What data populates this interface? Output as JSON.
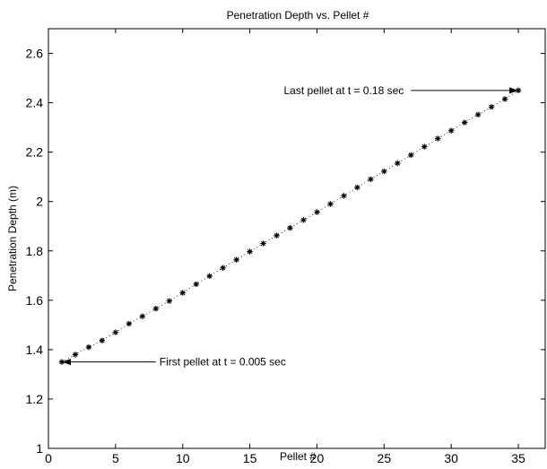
{
  "chart_data": {
    "type": "scatter",
    "title": "Penetration Depth vs. Pellet #",
    "xlabel": "Pellet #",
    "ylabel": "Penetration Depth (m)",
    "xlim": [
      0,
      37
    ],
    "ylim": [
      1,
      2.7
    ],
    "xticks": [
      0,
      5,
      10,
      15,
      20,
      25,
      30,
      35
    ],
    "yticks": [
      1,
      1.2,
      1.4,
      1.6,
      1.8,
      2,
      2.2,
      2.4,
      2.6
    ],
    "xtick_labels": [
      "0",
      "5",
      "10",
      "15",
      "20",
      "25",
      "30",
      "35"
    ],
    "ytick_labels": [
      "1",
      "1.2",
      "1.4",
      "1.6",
      "1.8",
      "2",
      "2.2",
      "2.4",
      "2.6"
    ],
    "grid": false,
    "marker": "*",
    "connector": "dotted",
    "series": [
      {
        "x": [
          1,
          2,
          3,
          4,
          5,
          6,
          7,
          8,
          9,
          10,
          11,
          12,
          13,
          14,
          15,
          16,
          17,
          18,
          19,
          20,
          21,
          22,
          23,
          24,
          25,
          26,
          27,
          28,
          29,
          30,
          31,
          32,
          33,
          34,
          35
        ],
        "y": [
          1.35,
          1.38,
          1.41,
          1.437,
          1.47,
          1.505,
          1.535,
          1.566,
          1.597,
          1.63,
          1.665,
          1.698,
          1.731,
          1.764,
          1.797,
          1.83,
          1.862,
          1.893,
          1.925,
          1.957,
          1.99,
          2.023,
          2.057,
          2.09,
          2.122,
          2.155,
          2.188,
          2.222,
          2.255,
          2.287,
          2.32,
          2.352,
          2.383,
          2.415,
          2.45
        ]
      }
    ],
    "annotations": [
      {
        "text": "Last pellet at t = 0.18 sec",
        "x": 35,
        "y": 2.45,
        "arrow_from_x": 27,
        "arrow_from_y": 2.45
      },
      {
        "text": "First pellet at t = 0.005 sec",
        "x": 1,
        "y": 1.35,
        "arrow_from_x": 8,
        "arrow_from_y": 1.35
      }
    ]
  }
}
